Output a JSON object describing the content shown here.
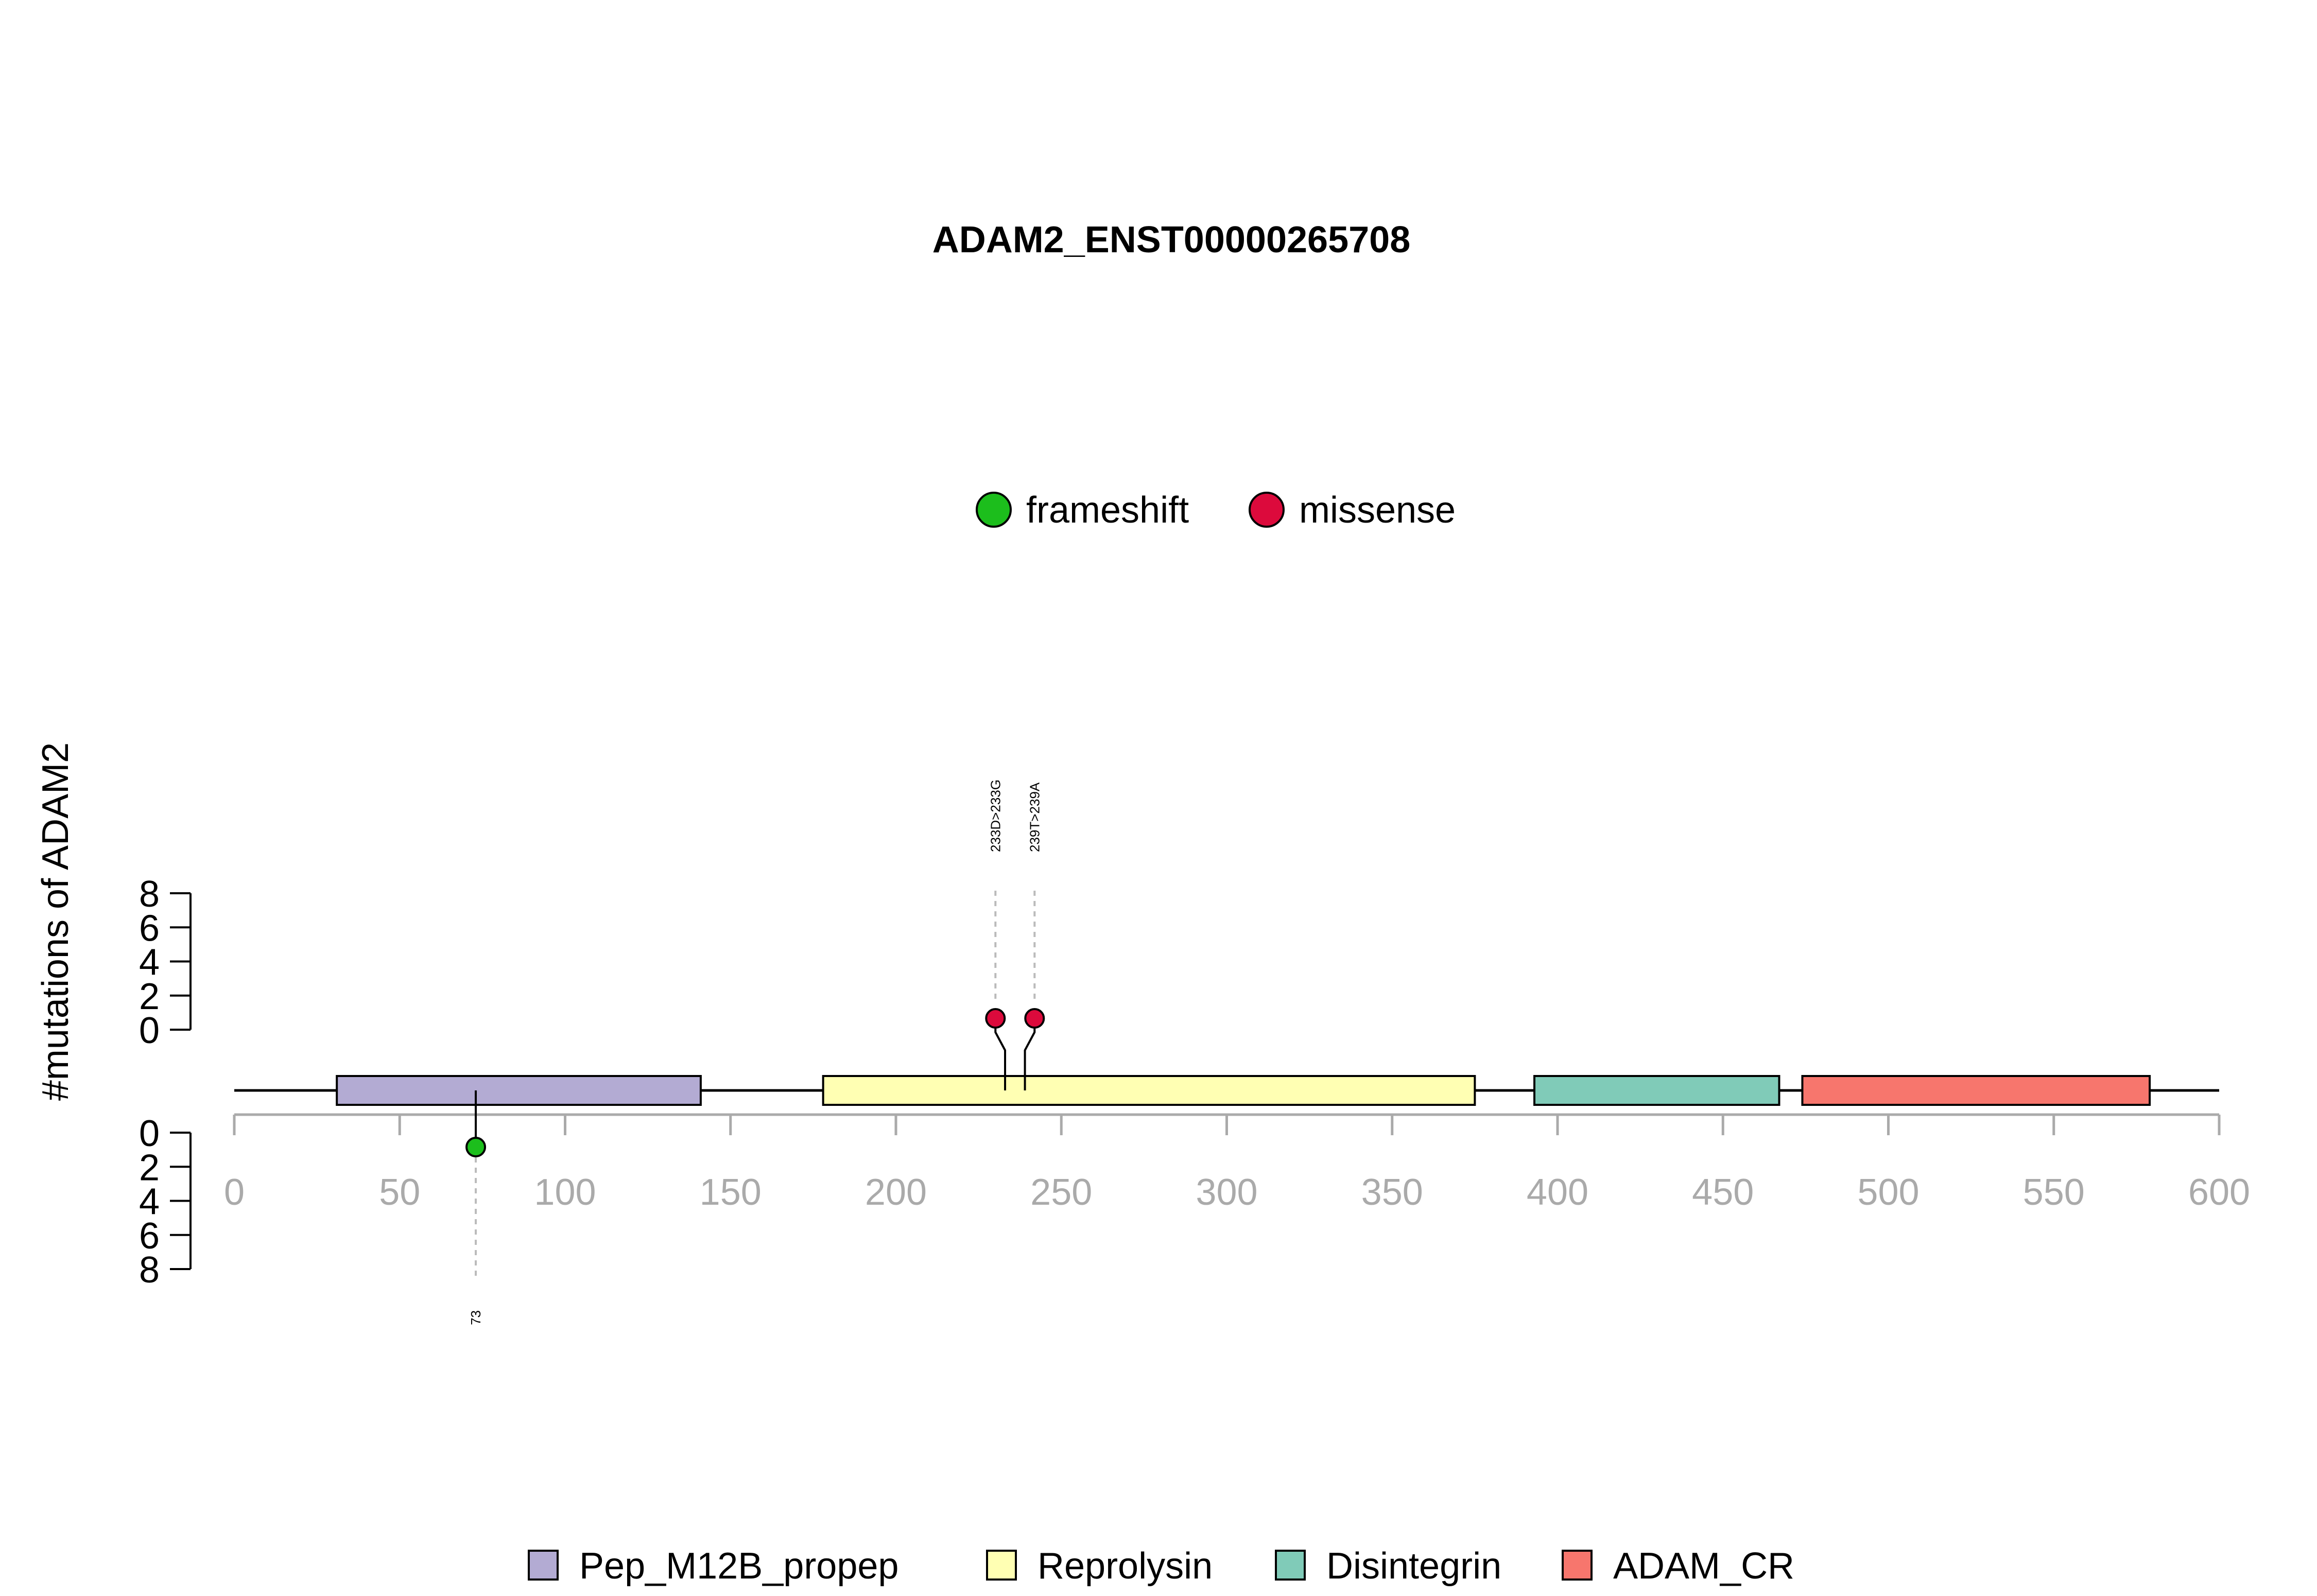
{
  "chart_data": {
    "type": "lollipop",
    "title": "ADAM2_ENST00000265708",
    "ylabel": "#mutations of ADAM2",
    "xlim": [
      0,
      600
    ],
    "x_ticks": [
      0,
      50,
      100,
      150,
      200,
      250,
      300,
      350,
      400,
      450,
      500,
      550,
      600
    ],
    "y_ticks_top": [
      0,
      2,
      4,
      6,
      8
    ],
    "y_ticks_bottom": [
      0,
      2,
      4,
      6,
      8
    ],
    "protein_length": 600,
    "mutation_types": [
      {
        "name": "frameshift",
        "color": "#1cbe1c"
      },
      {
        "name": "missense",
        "color": "#dc0a3c"
      }
    ],
    "mutations": [
      {
        "position": 73,
        "label": "73",
        "type": "frameshift",
        "count": 1,
        "side": "bottom"
      },
      {
        "position": 233,
        "label": "233D>233G",
        "type": "missense",
        "count": 1,
        "side": "top"
      },
      {
        "position": 239,
        "label": "239T>239A",
        "type": "missense",
        "count": 1,
        "side": "top"
      }
    ],
    "domains": [
      {
        "name": "Pep_M12B_propep",
        "start": 31,
        "end": 141,
        "color": "#b3abd3"
      },
      {
        "name": "Reprolysin",
        "start": 178,
        "end": 375,
        "color": "#ffffb3"
      },
      {
        "name": "Disintegrin",
        "start": 393,
        "end": 467,
        "color": "#80cbb8"
      },
      {
        "name": "ADAM_CR",
        "start": 474,
        "end": 579,
        "color": "#f7766d"
      }
    ]
  }
}
